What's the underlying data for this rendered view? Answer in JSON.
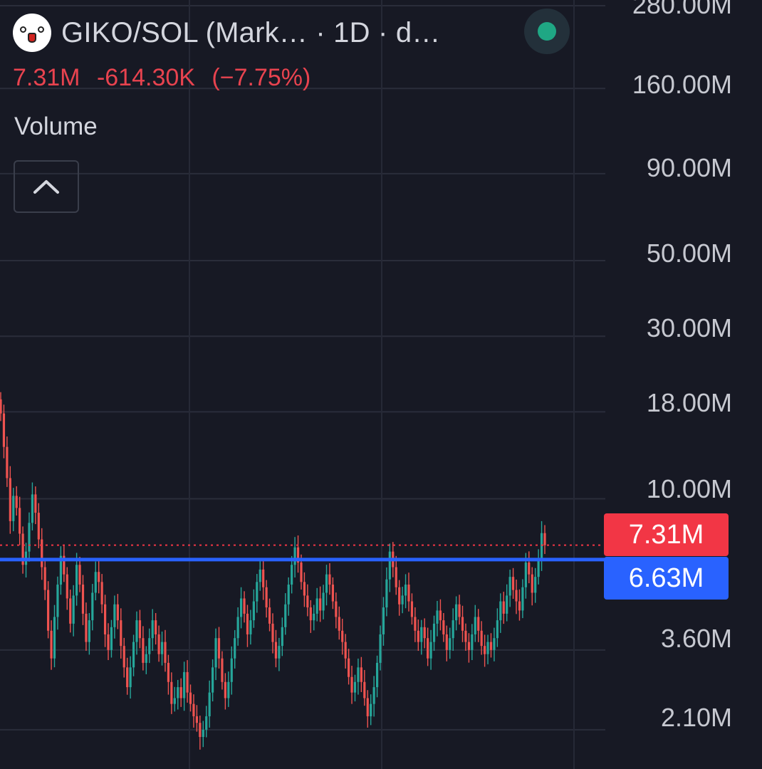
{
  "header": {
    "title": "GIKO/SOL (Mark…  · 1D · d…",
    "logo": "giko-face-icon",
    "status_color": "#1fa784"
  },
  "price": {
    "last": "7.31M",
    "change": "-614.30K",
    "change_pct": "(−7.75%)",
    "color": "#e8434f"
  },
  "indicator": {
    "label": "Volume",
    "collapse_icon": "chevron-up-icon"
  },
  "axis": {
    "labels": [
      "280.00M",
      "160.00M",
      "90.00M",
      "50.00M",
      "30.00M",
      "18.00M",
      "10.00M",
      "3.60M",
      "2.10M"
    ]
  },
  "tags": {
    "last_price": {
      "text": "7.31M",
      "color": "#f23645"
    },
    "level": {
      "text": "6.63M",
      "color": "#2962ff"
    }
  },
  "chart_data": {
    "type": "candlestick",
    "scale": "log",
    "ylim": [
      2.0,
      280.0
    ],
    "unit": "M",
    "y_ticks": [
      280,
      160,
      90,
      50,
      30,
      18,
      10,
      3.6,
      2.1
    ],
    "horizontal_lines": [
      {
        "value": 6.63,
        "color": "#2962ff",
        "style": "solid"
      },
      {
        "value": 7.31,
        "color": "#f23645",
        "style": "dotted"
      }
    ],
    "up_color": "#26a69a",
    "down_color": "#ef5350",
    "close": [
      17.8,
      14.2,
      11.5,
      8.6,
      10.2,
      9.4,
      7.9,
      6.4,
      7.0,
      8.5,
      10.3,
      9.1,
      7.6,
      6.3,
      5.4,
      4.1,
      3.4,
      4.5,
      5.6,
      6.8,
      6.0,
      5.1,
      4.3,
      5.2,
      6.4,
      5.6,
      4.6,
      3.8,
      4.4,
      5.3,
      6.1,
      5.7,
      4.9,
      4.0,
      3.6,
      4.2,
      4.9,
      4.4,
      3.7,
      3.2,
      2.8,
      3.2,
      3.8,
      4.4,
      3.9,
      3.3,
      3.5,
      3.9,
      4.4,
      4.0,
      3.5,
      3.8,
      3.3,
      2.9,
      2.5,
      2.6,
      2.8,
      2.6,
      3.1,
      2.7,
      2.5,
      2.3,
      2.2,
      2.0,
      2.1,
      2.3,
      2.7,
      3.2,
      3.9,
      3.4,
      2.9,
      2.6,
      2.9,
      3.4,
      3.9,
      4.5,
      5.1,
      4.6,
      4.0,
      4.4,
      5.0,
      5.7,
      6.2,
      5.5,
      4.8,
      4.3,
      3.8,
      3.4,
      3.7,
      4.2,
      4.9,
      5.6,
      6.4,
      7.2,
      6.5,
      5.7,
      5.2,
      4.8,
      4.4,
      4.6,
      5.1,
      4.7,
      5.3,
      6.0,
      5.6,
      5.0,
      4.5,
      4.1,
      3.8,
      3.4,
      3.0,
      2.7,
      2.9,
      3.2,
      2.9,
      2.6,
      2.3,
      2.5,
      2.8,
      3.3,
      4.0,
      4.8,
      5.8,
      7.0,
      6.3,
      5.5,
      4.9,
      5.2,
      5.6,
      5.0,
      4.5,
      4.1,
      3.8,
      4.2,
      3.9,
      3.4,
      3.8,
      4.3,
      4.7,
      4.4,
      4.0,
      3.6,
      3.9,
      4.4,
      4.9,
      4.5,
      4.1,
      3.8,
      3.6,
      4.0,
      4.5,
      4.1,
      3.7,
      3.5,
      3.8,
      3.6,
      3.9,
      4.4,
      5.0,
      4.6,
      5.2,
      5.9,
      5.4,
      5.0,
      4.7,
      5.5,
      6.5,
      6.0,
      5.3,
      5.9,
      6.63,
      7.93,
      7.31
    ]
  }
}
